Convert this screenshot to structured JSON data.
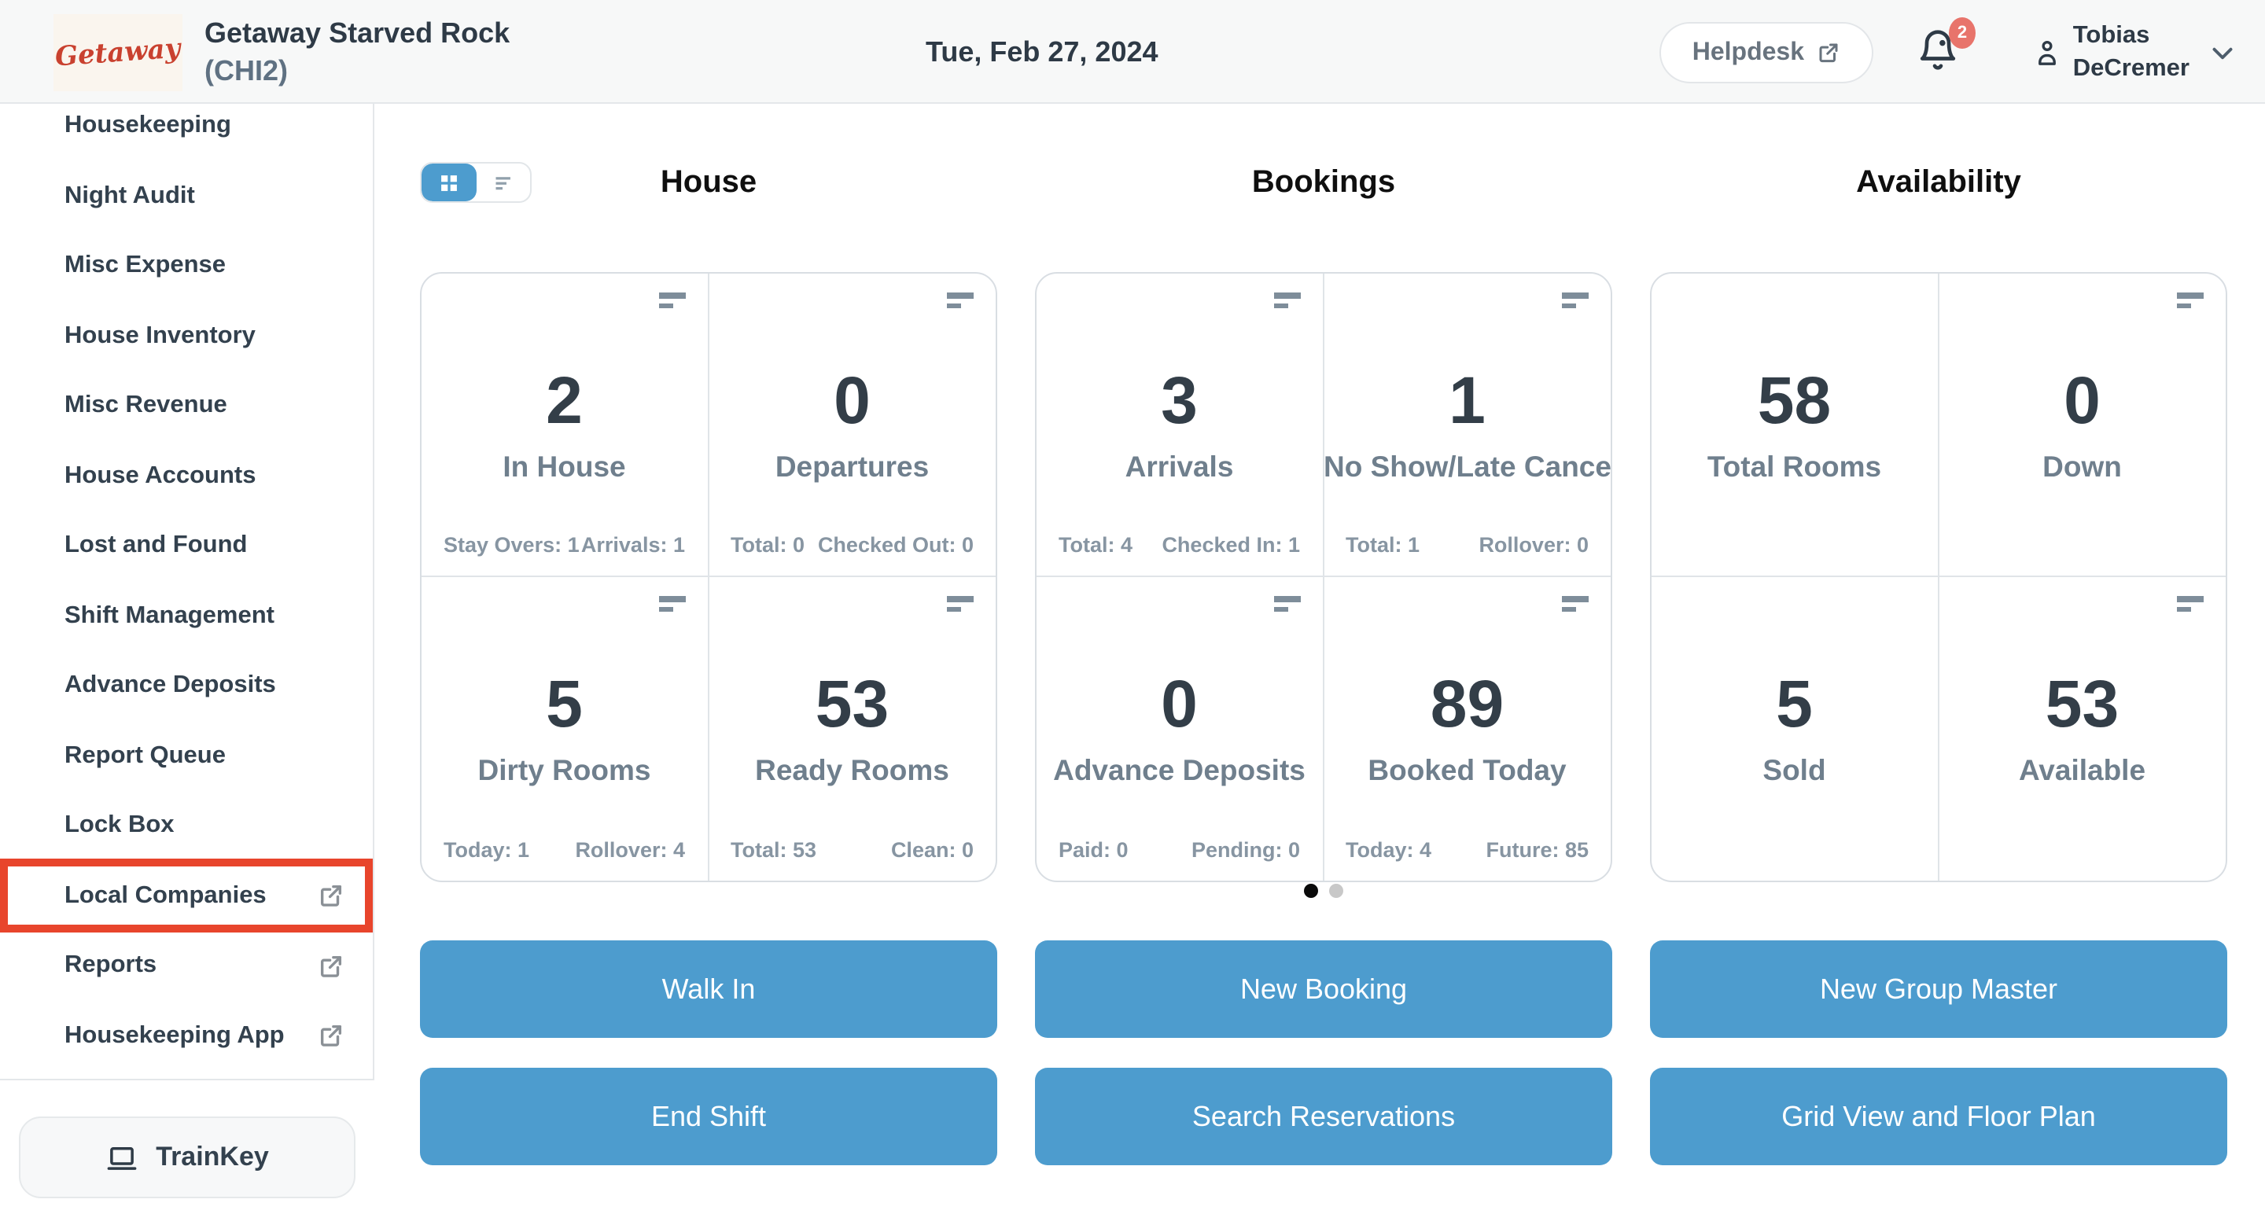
{
  "header": {
    "logo_text": "Getaway",
    "property_name": "Getaway Starved Rock",
    "property_code": "(CHI2)",
    "date": "Tue, Feb 27, 2024",
    "helpdesk_label": "Helpdesk",
    "notification_count": "2",
    "user_name_line1": "Tobias",
    "user_name_line2": "DeCremer"
  },
  "sidebar": {
    "items": [
      {
        "label": "Housekeeping",
        "external": false,
        "highlighted": false
      },
      {
        "label": "Night Audit",
        "external": false,
        "highlighted": false
      },
      {
        "label": "Misc Expense",
        "external": false,
        "highlighted": false
      },
      {
        "label": "House Inventory",
        "external": false,
        "highlighted": false
      },
      {
        "label": "Misc Revenue",
        "external": false,
        "highlighted": false
      },
      {
        "label": "House Accounts",
        "external": false,
        "highlighted": false
      },
      {
        "label": "Lost and Found",
        "external": false,
        "highlighted": false
      },
      {
        "label": "Shift Management",
        "external": false,
        "highlighted": false
      },
      {
        "label": "Advance Deposits",
        "external": false,
        "highlighted": false
      },
      {
        "label": "Report Queue",
        "external": false,
        "highlighted": false
      },
      {
        "label": "Lock Box",
        "external": false,
        "highlighted": false
      },
      {
        "label": "Local Companies",
        "external": true,
        "highlighted": true
      },
      {
        "label": "Reports",
        "external": true,
        "highlighted": false
      },
      {
        "label": "Housekeeping App",
        "external": true,
        "highlighted": false
      }
    ],
    "trainkey_label": "TrainKey"
  },
  "dashboard": {
    "view_toggle": {
      "active": "grid"
    },
    "sections": [
      {
        "title": "House",
        "cells": [
          {
            "value": "2",
            "label": "In House",
            "icon": true,
            "stats": {
              "left": "Stay Overs: 1",
              "right": "Arrivals: 1"
            }
          },
          {
            "value": "0",
            "label": "Departures",
            "icon": true,
            "stats": {
              "left": "Total: 0",
              "right": "Checked Out: 0"
            }
          },
          {
            "value": "5",
            "label": "Dirty Rooms",
            "icon": true,
            "stats": {
              "left": "Today: 1",
              "right": "Rollover: 4"
            }
          },
          {
            "value": "53",
            "label": "Ready Rooms",
            "icon": true,
            "stats": {
              "left": "Total: 53",
              "right": "Clean: 0"
            }
          }
        ]
      },
      {
        "title": "Bookings",
        "cells": [
          {
            "value": "3",
            "label": "Arrivals",
            "icon": true,
            "stats": {
              "left": "Total: 4",
              "right": "Checked In: 1"
            }
          },
          {
            "value": "1",
            "label": "No Show/Late Cancel",
            "icon": true,
            "stats": {
              "left": "Total: 1",
              "right": "Rollover: 0"
            }
          },
          {
            "value": "0",
            "label": "Advance Deposits",
            "icon": true,
            "stats": {
              "left": "Paid: 0",
              "right": "Pending: 0"
            }
          },
          {
            "value": "89",
            "label": "Booked Today",
            "icon": true,
            "stats": {
              "left": "Today: 4",
              "right": "Future: 85"
            }
          }
        ]
      },
      {
        "title": "Availability",
        "cells": [
          {
            "value": "58",
            "label": "Total Rooms",
            "icon": false,
            "stats": null
          },
          {
            "value": "0",
            "label": "Down",
            "icon": true,
            "stats": null
          },
          {
            "value": "5",
            "label": "Sold",
            "icon": false,
            "stats": null
          },
          {
            "value": "53",
            "label": "Available",
            "icon": true,
            "stats": null
          }
        ]
      }
    ],
    "pagination": {
      "total": 2,
      "active_index": 0
    },
    "actions": [
      "Walk In",
      "New Booking",
      "New Group Master",
      "End Shift",
      "Search Reservations",
      "Grid View and Floor Plan"
    ]
  },
  "colors": {
    "accent_blue": "#4D9CCE",
    "highlight_red": "#E8452C",
    "badge_red": "#E8746B",
    "header_bg": "#F7F8F8",
    "text_dark": "#2E3A46",
    "label_gray": "#6F7F8D",
    "logo_red": "#C9412F"
  }
}
